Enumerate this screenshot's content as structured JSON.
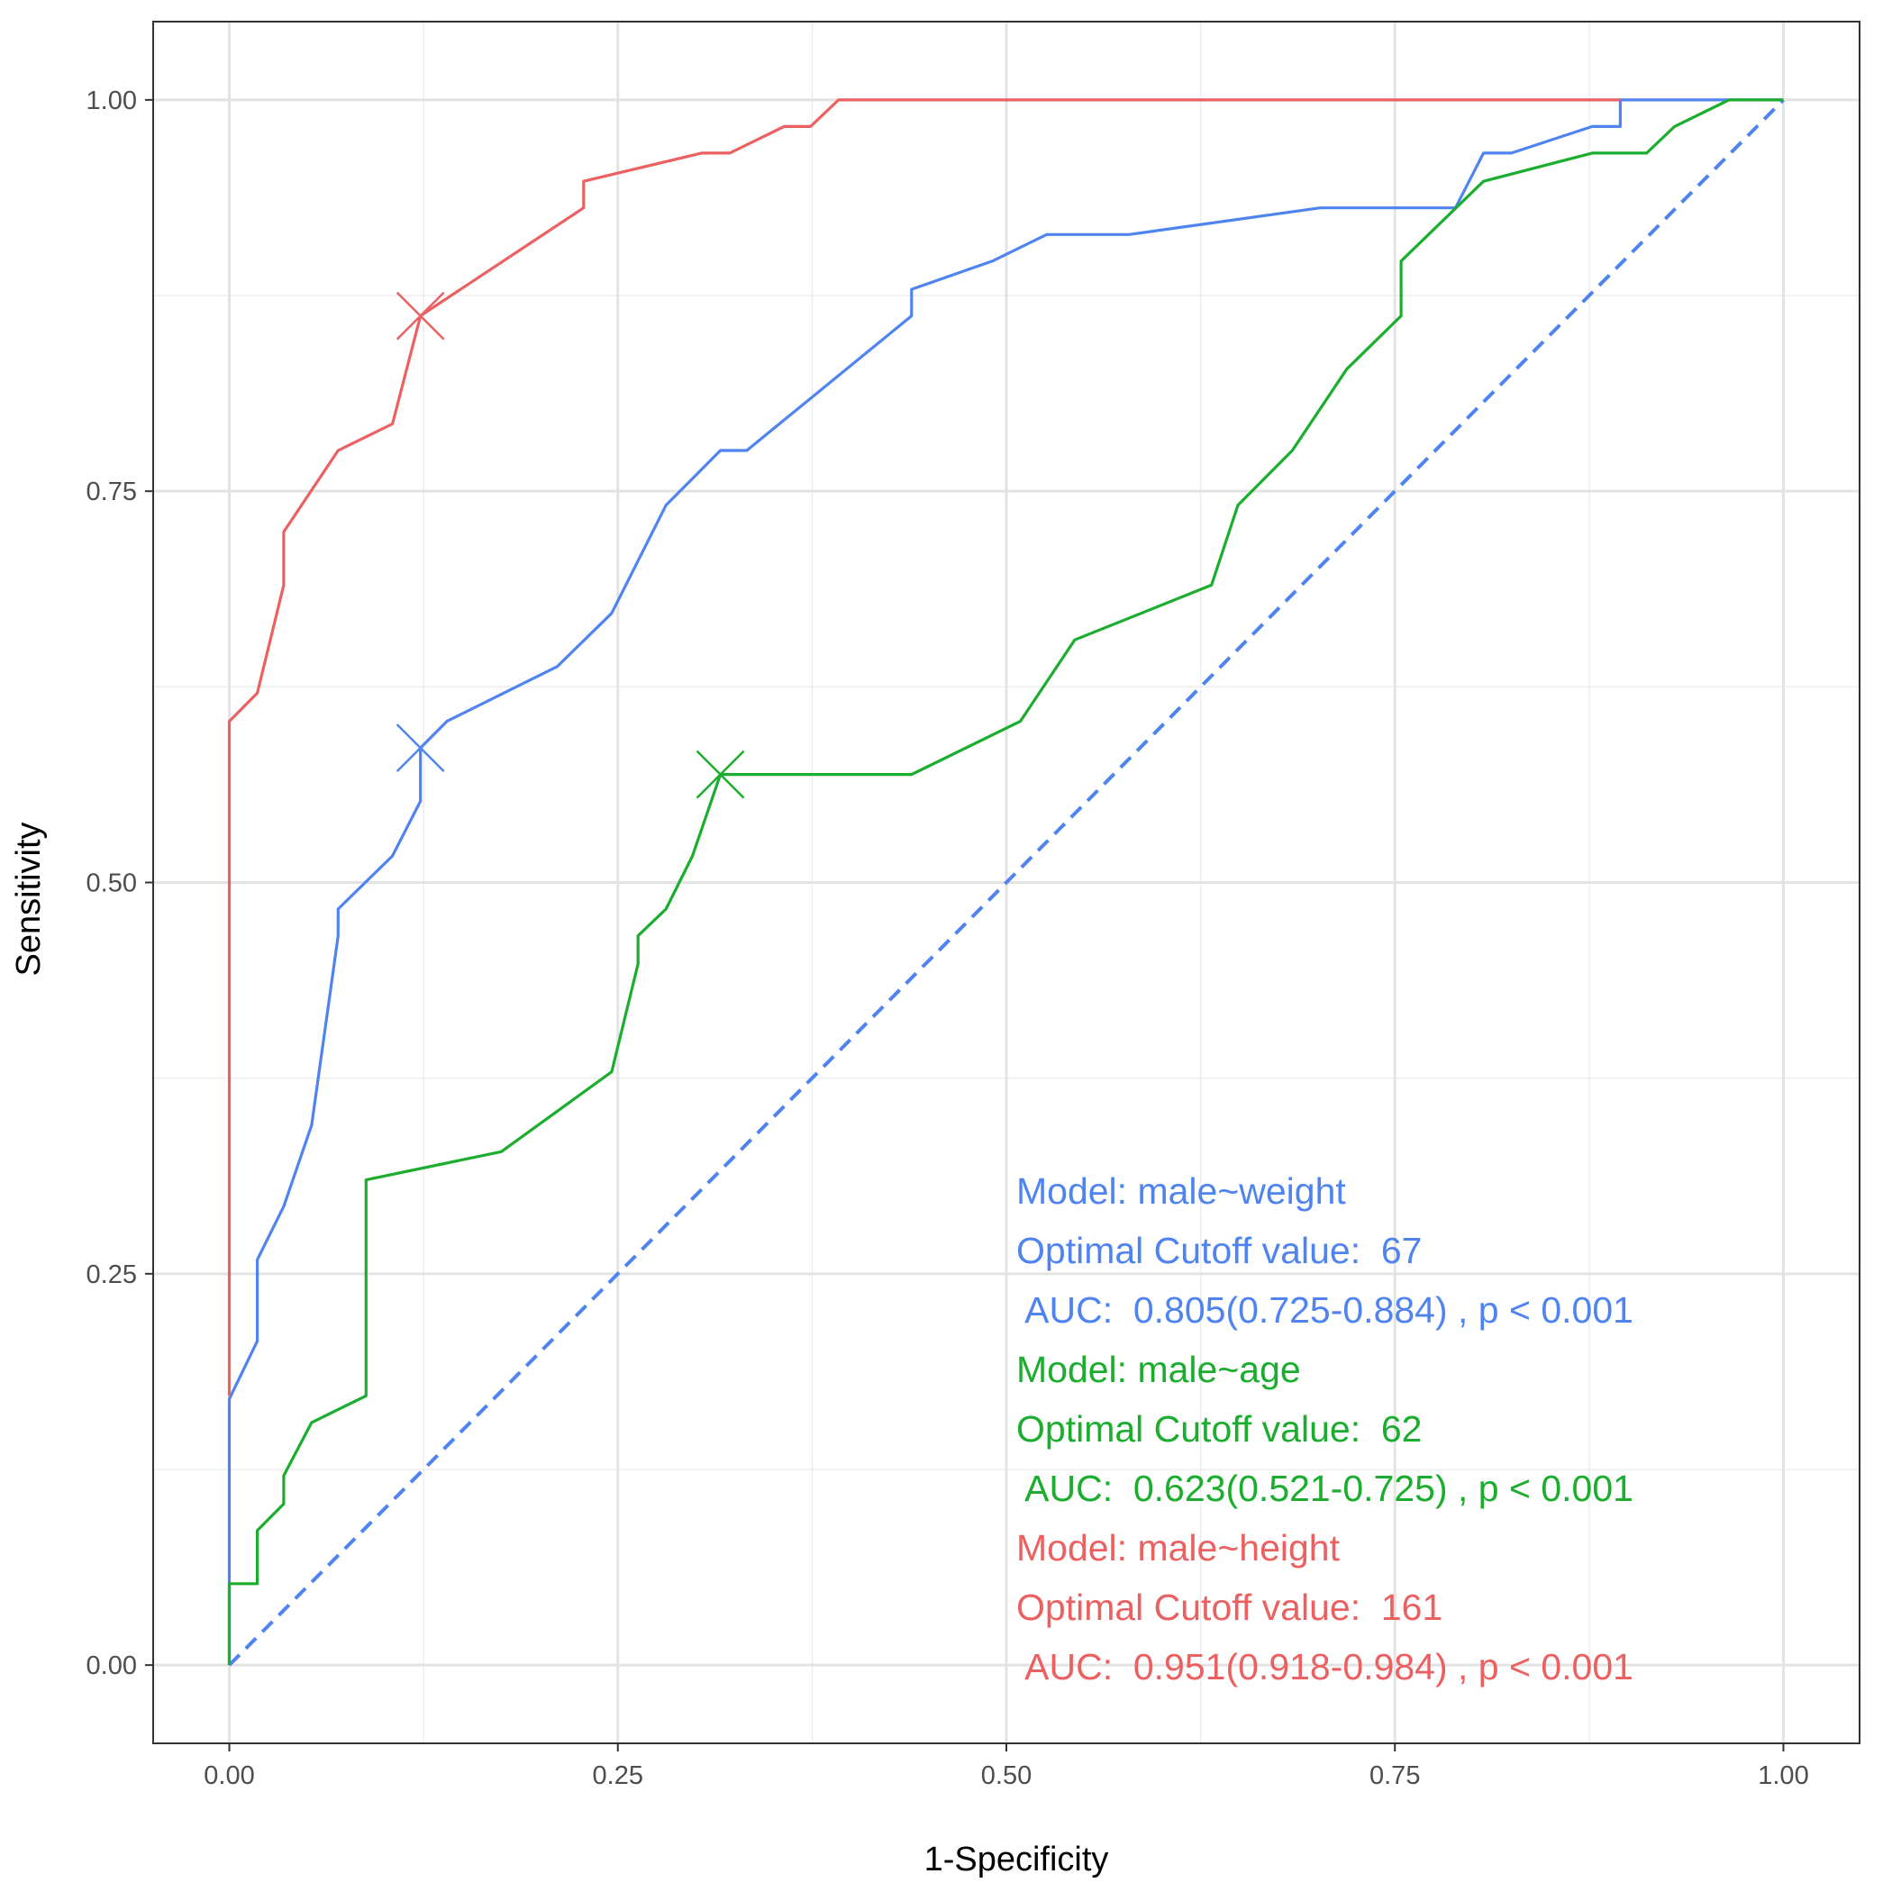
{
  "chart_data": {
    "type": "line",
    "title": "",
    "xlabel": "1-Specificity",
    "ylabel": "Sensitivity",
    "xlim": [
      -0.049,
      1.049
    ],
    "ylim": [
      -0.05,
      1.05
    ],
    "x_ticks": [
      0,
      0.25,
      0.5,
      0.75,
      1
    ],
    "x_tick_labels": [
      "0.00",
      "0.25",
      "0.50",
      "0.75",
      "1.00"
    ],
    "y_ticks": [
      0,
      0.25,
      0.5,
      0.75,
      1
    ],
    "y_tick_labels": [
      "0.00",
      "0.25",
      "0.50",
      "0.75",
      "1.00"
    ],
    "grid": true,
    "legend": "none",
    "series": [
      {
        "name": "male~weight",
        "color": "#4f84f0",
        "points": [
          [
            0,
            0
          ],
          [
            0,
            0.17
          ],
          [
            0.018,
            0.207
          ],
          [
            0.018,
            0.259
          ],
          [
            0.035,
            0.293
          ],
          [
            0.053,
            0.345
          ],
          [
            0.07,
            0.466
          ],
          [
            0.07,
            0.483
          ],
          [
            0.105,
            0.517
          ],
          [
            0.123,
            0.552
          ],
          [
            0.123,
            0.586
          ],
          [
            0.14,
            0.603
          ],
          [
            0.211,
            0.638
          ],
          [
            0.246,
            0.672
          ],
          [
            0.281,
            0.741
          ],
          [
            0.316,
            0.776
          ],
          [
            0.333,
            0.776
          ],
          [
            0.439,
            0.862
          ],
          [
            0.439,
            0.879
          ],
          [
            0.491,
            0.897
          ],
          [
            0.526,
            0.914
          ],
          [
            0.579,
            0.914
          ],
          [
            0.702,
            0.931
          ],
          [
            0.789,
            0.931
          ],
          [
            0.807,
            0.966
          ],
          [
            0.825,
            0.966
          ],
          [
            0.877,
            0.983
          ],
          [
            0.895,
            0.983
          ],
          [
            0.895,
            1
          ],
          [
            0.965,
            1
          ],
          [
            1,
            1
          ]
        ]
      },
      {
        "name": "male~age",
        "color": "#1aad2e",
        "points": [
          [
            0,
            0
          ],
          [
            0,
            0.052
          ],
          [
            0.018,
            0.052
          ],
          [
            0.018,
            0.086
          ],
          [
            0.035,
            0.103
          ],
          [
            0.035,
            0.121
          ],
          [
            0.053,
            0.155
          ],
          [
            0.088,
            0.172
          ],
          [
            0.088,
            0.31
          ],
          [
            0.175,
            0.328
          ],
          [
            0.246,
            0.379
          ],
          [
            0.263,
            0.448
          ],
          [
            0.263,
            0.466
          ],
          [
            0.281,
            0.483
          ],
          [
            0.298,
            0.517
          ],
          [
            0.316,
            0.569
          ],
          [
            0.439,
            0.569
          ],
          [
            0.509,
            0.603
          ],
          [
            0.544,
            0.655
          ],
          [
            0.632,
            0.69
          ],
          [
            0.649,
            0.741
          ],
          [
            0.684,
            0.776
          ],
          [
            0.719,
            0.828
          ],
          [
            0.754,
            0.862
          ],
          [
            0.754,
            0.897
          ],
          [
            0.807,
            0.948
          ],
          [
            0.877,
            0.966
          ],
          [
            0.912,
            0.966
          ],
          [
            0.93,
            0.983
          ],
          [
            0.965,
            1
          ],
          [
            1,
            1
          ]
        ]
      },
      {
        "name": "male~height",
        "color": "#eb6060",
        "points": [
          [
            0,
            0.172
          ],
          [
            0,
            0.603
          ],
          [
            0.018,
            0.621
          ],
          [
            0.035,
            0.69
          ],
          [
            0.035,
            0.724
          ],
          [
            0.07,
            0.776
          ],
          [
            0.105,
            0.793
          ],
          [
            0.123,
            0.862
          ],
          [
            0.228,
            0.931
          ],
          [
            0.228,
            0.948
          ],
          [
            0.304,
            0.966
          ],
          [
            0.322,
            0.966
          ],
          [
            0.357,
            0.983
          ],
          [
            0.374,
            0.983
          ],
          [
            0.392,
            1
          ],
          [
            0.895,
            1
          ]
        ]
      }
    ],
    "reference_line": {
      "from": [
        0,
        0
      ],
      "to": [
        1,
        1
      ],
      "color": "#4f84f0",
      "style": "dashed"
    },
    "optimal_points": [
      {
        "series": "male~weight",
        "x": 0.123,
        "y": 0.586,
        "color": "#4f84f0"
      },
      {
        "series": "male~age",
        "x": 0.316,
        "y": 0.569,
        "color": "#1aad2e"
      },
      {
        "series": "male~height",
        "x": 0.123,
        "y": 0.862,
        "color": "#eb6060"
      }
    ],
    "annotations": [
      {
        "text": "Model: male~weight",
        "color": "#4f84f0"
      },
      {
        "text": "Optimal Cutoff value:  67",
        "color": "#4f84f0"
      },
      {
        "text": " AUC:  0.805(0.725-0.884) , p < 0.001",
        "color": "#4f84f0"
      },
      {
        "text": "Model: male~age",
        "color": "#1aad2e"
      },
      {
        "text": "Optimal Cutoff value:  62",
        "color": "#1aad2e"
      },
      {
        "text": " AUC:  0.623(0.521-0.725) , p < 0.001",
        "color": "#1aad2e"
      },
      {
        "text": "Model: male~height",
        "color": "#eb6060"
      },
      {
        "text": "Optimal Cutoff value:  161",
        "color": "#eb6060"
      },
      {
        "text": " AUC:  0.951(0.918-0.984) , p < 0.001",
        "color": "#eb6060"
      }
    ]
  }
}
